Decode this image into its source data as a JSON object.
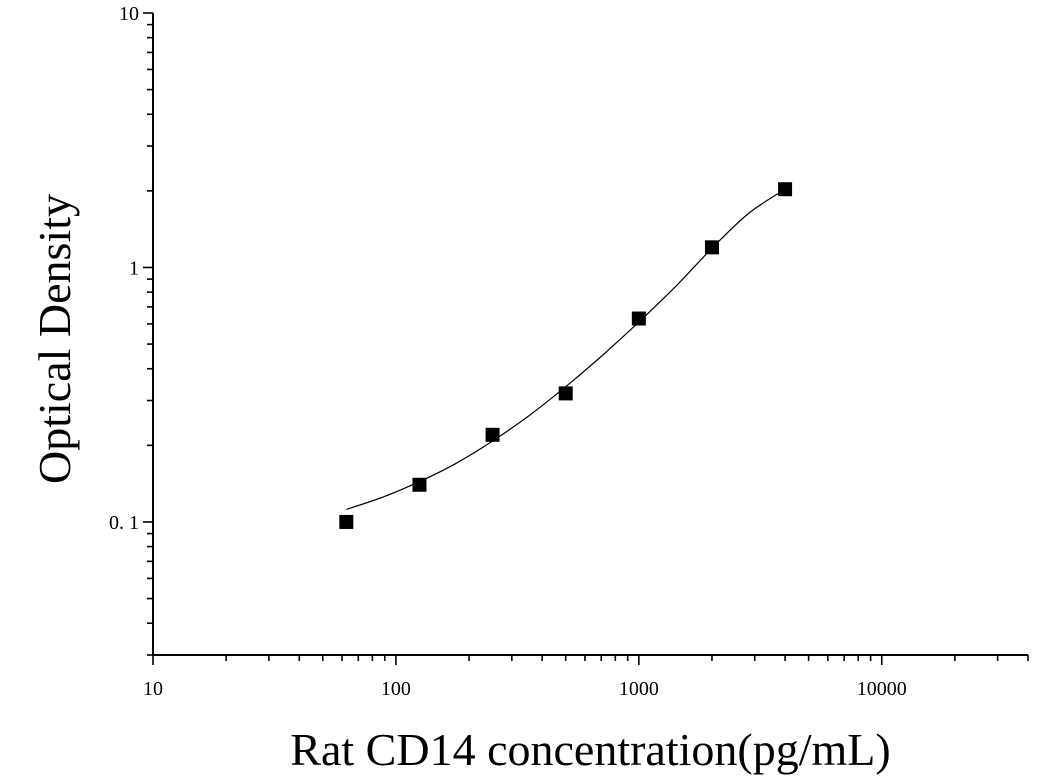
{
  "chart_data": {
    "type": "scatter",
    "title": "",
    "xlabel": "Rat CD14 concentration(pg/mL)",
    "ylabel": "Optical Density",
    "x_scale": "log",
    "y_scale": "log",
    "xlim": [
      10,
      40000
    ],
    "ylim": [
      0.03,
      10
    ],
    "x_ticks": [
      {
        "value": 10,
        "label": "10"
      },
      {
        "value": 100,
        "label": "100"
      },
      {
        "value": 1000,
        "label": "1000"
      },
      {
        "value": 10000,
        "label": "10000"
      }
    ],
    "y_ticks": [
      {
        "value": 0.1,
        "label": "0. 1"
      },
      {
        "value": 1,
        "label": "1"
      },
      {
        "value": 10,
        "label": "10"
      }
    ],
    "grid": false,
    "legend": "none",
    "series": [
      {
        "points": [
          {
            "x": 62.5,
            "y": 0.1
          },
          {
            "x": 125,
            "y": 0.14
          },
          {
            "x": 250,
            "y": 0.22
          },
          {
            "x": 500,
            "y": 0.32
          },
          {
            "x": 1000,
            "y": 0.63
          },
          {
            "x": 2000,
            "y": 1.2
          },
          {
            "x": 4000,
            "y": 2.03
          }
        ],
        "marker": "square",
        "color": "#000000"
      }
    ],
    "fit_curve": {
      "x": [
        62.5,
        88,
        125,
        177,
        250,
        354,
        500,
        707,
        1000,
        1414,
        2000,
        2828,
        4000
      ],
      "y": [
        0.112,
        0.125,
        0.144,
        0.17,
        0.208,
        0.262,
        0.34,
        0.451,
        0.61,
        0.84,
        1.19,
        1.63,
        2.03
      ]
    }
  }
}
